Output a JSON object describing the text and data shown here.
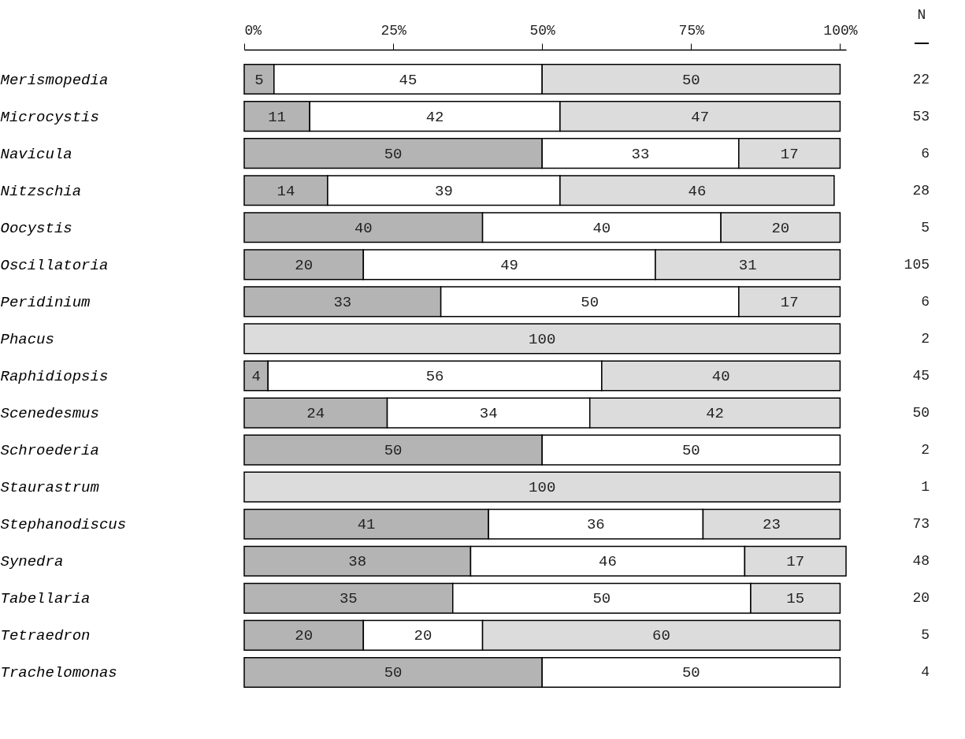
{
  "chart_data": {
    "type": "bar",
    "orientation": "horizontal",
    "stacked": true,
    "data_labels": true,
    "categories": [
      "Merismopedia",
      "Microcystis",
      "Navicula",
      "Nitzschia",
      "Oocystis",
      "Oscillatoria",
      "Peridinium",
      "Phacus",
      "Raphidiopsis",
      "Scenedesmus",
      "Schroederia",
      "Staurastrum",
      "Stephanodiscus",
      "Synedra",
      "Tabellaria",
      "Tetraedron",
      "Trachelomonas"
    ],
    "series": [
      {
        "color": "#b4b4b4",
        "values": [
          5,
          11,
          50,
          14,
          40,
          20,
          33,
          null,
          4,
          24,
          50,
          null,
          41,
          38,
          35,
          20,
          50
        ]
      },
      {
        "color": "#ffffff",
        "values": [
          45,
          42,
          33,
          39,
          40,
          49,
          50,
          null,
          56,
          34,
          50,
          null,
          36,
          46,
          50,
          20,
          50
        ]
      },
      {
        "color": "#dcdcdc",
        "values": [
          50,
          47,
          17,
          46,
          20,
          31,
          17,
          100,
          40,
          42,
          null,
          100,
          23,
          17,
          15,
          60,
          null
        ]
      }
    ],
    "xlim": [
      0,
      101
    ],
    "xticks": [
      {
        "value": 0,
        "label": "0%"
      },
      {
        "value": 25,
        "label": "25%"
      },
      {
        "value": 50,
        "label": "50%"
      },
      {
        "value": 75,
        "label": "75%"
      },
      {
        "value": 100,
        "label": "100%"
      }
    ],
    "annotations": [
      "N",
      "22",
      "53",
      "6",
      "28",
      "5",
      "105",
      "6",
      "2",
      "45",
      "50",
      "2",
      "1",
      "73",
      "48",
      "20",
      "5",
      "4"
    ],
    "grid": false
  }
}
